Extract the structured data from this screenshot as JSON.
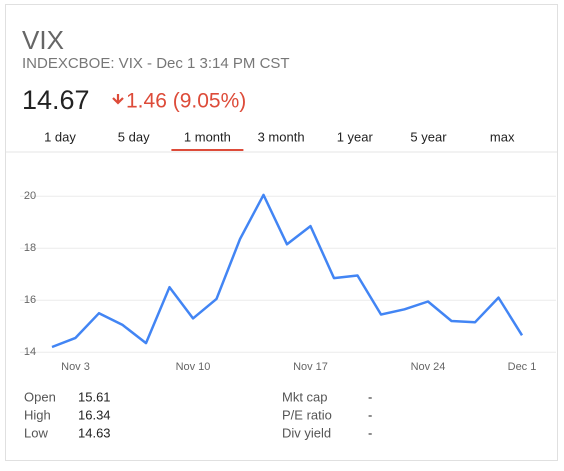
{
  "header": {
    "symbol": "VIX",
    "exchange_line": "INDEXCBOE: VIX - Dec 1 3:14 PM CST",
    "price": 14.67,
    "change": "1.46 (9.05%)",
    "change_color": "#dd4b39"
  },
  "tabs": {
    "items": [
      "1 day",
      "5 day",
      "1 month",
      "3 month",
      "1 year",
      "5 year",
      "max"
    ],
    "selected": 2
  },
  "chart_data": {
    "type": "line",
    "categories": [
      null,
      "Nov 3",
      null,
      null,
      null,
      null,
      "Nov 10",
      null,
      null,
      null,
      null,
      "Nov 17",
      null,
      null,
      null,
      null,
      "Nov 24",
      null,
      null,
      null,
      "Dec 1"
    ],
    "series": [
      {
        "color": "#4285f4",
        "values": [
          14.2,
          14.55,
          15.5,
          15.05,
          14.35,
          16.5,
          15.3,
          16.05,
          18.35,
          20.05,
          18.15,
          18.85,
          16.85,
          16.95,
          15.45,
          15.65,
          15.95,
          15.2,
          15.15,
          16.1,
          14.65
        ]
      }
    ],
    "ylim": [
      13.7,
      21.2
    ],
    "yticks": [
      14,
      16,
      18,
      20
    ],
    "grid": true
  },
  "stats": {
    "left": [
      {
        "label": "Open",
        "value": 15.61
      },
      {
        "label": "High",
        "value": 16.34
      },
      {
        "label": "Low",
        "value": 14.63
      }
    ],
    "right": [
      {
        "label": "Mkt cap",
        "value": "-"
      },
      {
        "label": "P/E ratio",
        "value": "-"
      },
      {
        "label": "Div yield",
        "value": "-"
      }
    ]
  }
}
